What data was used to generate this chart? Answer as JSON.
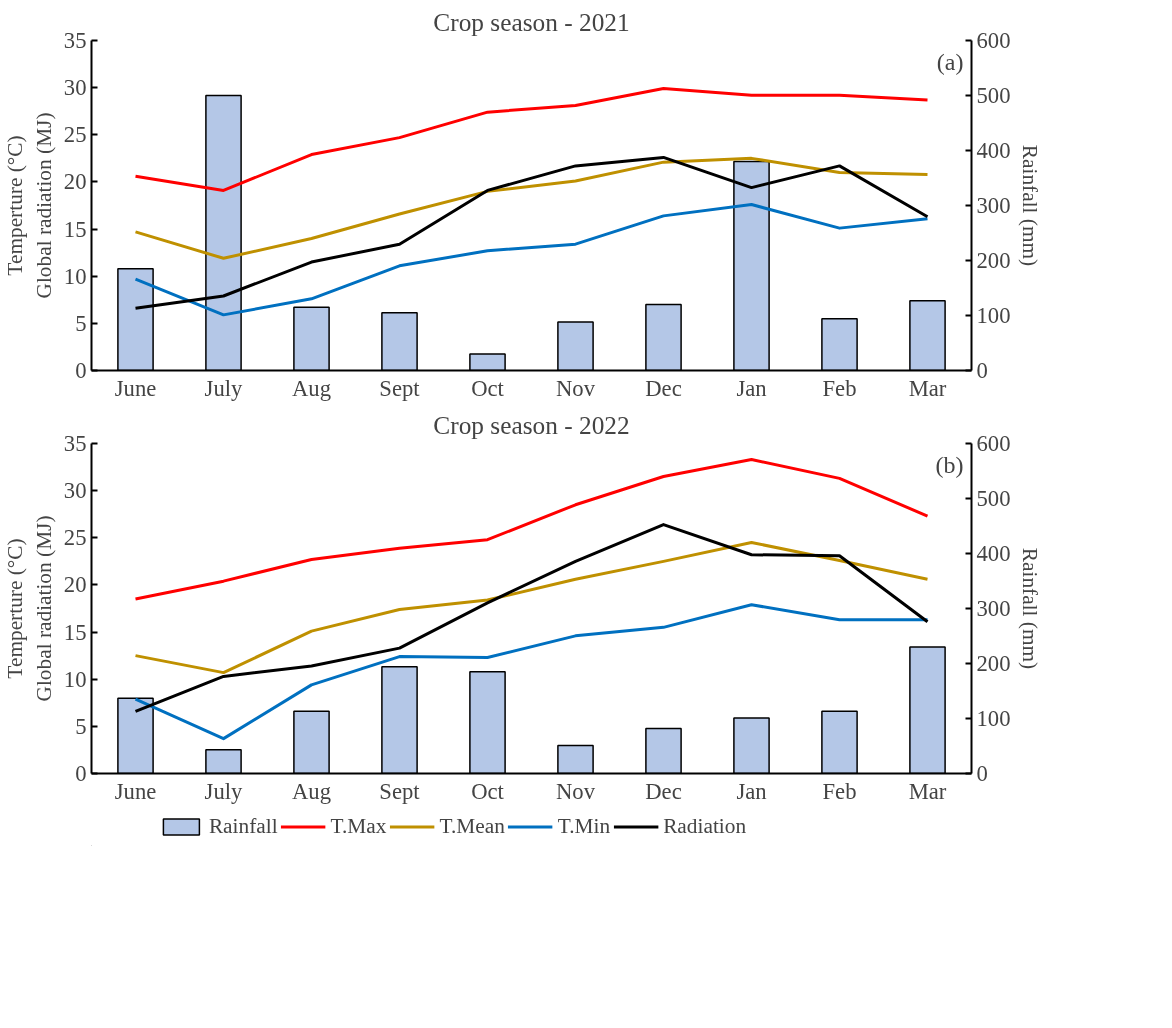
{
  "chart_data": [
    {
      "type": "bar",
      "title": "Crop season - 2021",
      "annotations": [
        "(a)"
      ],
      "ylabel": "Temperture (°C)\nGlobal radiation (MJ)",
      "y2label": "Rainfall (mm)",
      "categories": [
        "June",
        "July",
        "Aug",
        "Sept",
        "Oct",
        "Nov",
        "Dec",
        "Jan",
        "Feb",
        "Mar"
      ],
      "ylim": [
        0,
        35
      ],
      "yticks": [
        0,
        5,
        10,
        15,
        20,
        25,
        30,
        35
      ],
      "y2lim": [
        0,
        600
      ],
      "y2ticks": [
        0,
        100,
        200,
        300,
        400,
        500,
        600
      ],
      "grid": false,
      "series": [
        {
          "axis": "y2",
          "color": "#b4c7e7",
          "values": [
            185,
            500,
            115,
            105,
            30,
            88,
            120,
            380,
            94,
            127
          ]
        },
        {
          "type": "line",
          "color": "#ff0000",
          "values": [
            20.6,
            19.1,
            22.9,
            24.7,
            27.4,
            28.1,
            29.9,
            29.2,
            29.2,
            28.7
          ]
        },
        {
          "type": "line",
          "color": "#bf9000",
          "values": [
            14.7,
            11.9,
            14.0,
            16.6,
            19.0,
            20.1,
            22.1,
            22.5,
            21.0,
            20.8
          ]
        },
        {
          "type": "line",
          "color": "#0070c0",
          "values": [
            9.7,
            5.9,
            7.6,
            11.1,
            12.7,
            13.4,
            16.4,
            17.6,
            15.1,
            16.1
          ]
        },
        {
          "type": "line",
          "color": "#000000",
          "values": [
            6.6,
            7.9,
            11.5,
            13.4,
            19.1,
            21.7,
            22.6,
            19.4,
            21.7,
            16.3
          ]
        }
      ]
    },
    {
      "type": "bar",
      "title": "Crop season - 2022",
      "annotations": [
        "(b)"
      ],
      "ylabel": "Temperture (°C)\nGlobal radiation (MJ)",
      "y2label": "Rainfall (mm)",
      "categories": [
        "June",
        "July",
        "Aug",
        "Sept",
        "Oct",
        "Nov",
        "Dec",
        "Jan",
        "Feb",
        "Mar"
      ],
      "ylim": [
        0,
        35
      ],
      "yticks": [
        0,
        5,
        10,
        15,
        20,
        25,
        30,
        35
      ],
      "y2lim": [
        0,
        600
      ],
      "y2ticks": [
        0,
        100,
        200,
        300,
        400,
        500,
        600
      ],
      "grid": false,
      "legend": "bottom",
      "series": [
        {
          "axis": "y2",
          "name": "Rainfall",
          "color": "#b4c7e7",
          "values": [
            137,
            43,
            113,
            194,
            185,
            51,
            82,
            101,
            113,
            230
          ]
        },
        {
          "type": "line",
          "name": "T.Max",
          "color": "#ff0000",
          "values": [
            18.5,
            20.4,
            22.7,
            23.9,
            24.8,
            28.5,
            31.5,
            33.3,
            31.3,
            27.3
          ]
        },
        {
          "type": "line",
          "name": "T.Mean",
          "color": "#bf9000",
          "values": [
            12.5,
            10.7,
            15.1,
            17.4,
            18.4,
            20.6,
            22.5,
            24.5,
            22.6,
            20.6
          ]
        },
        {
          "type": "line",
          "name": "T.Min",
          "color": "#0070c0",
          "values": [
            7.9,
            3.7,
            9.4,
            12.4,
            12.3,
            14.6,
            15.5,
            17.9,
            16.3,
            16.3
          ]
        },
        {
          "type": "line",
          "name": "Radiation",
          "color": "#000000",
          "values": [
            6.6,
            10.3,
            11.4,
            13.3,
            18.1,
            22.5,
            26.4,
            23.2,
            23.1,
            16.1
          ]
        }
      ]
    }
  ]
}
